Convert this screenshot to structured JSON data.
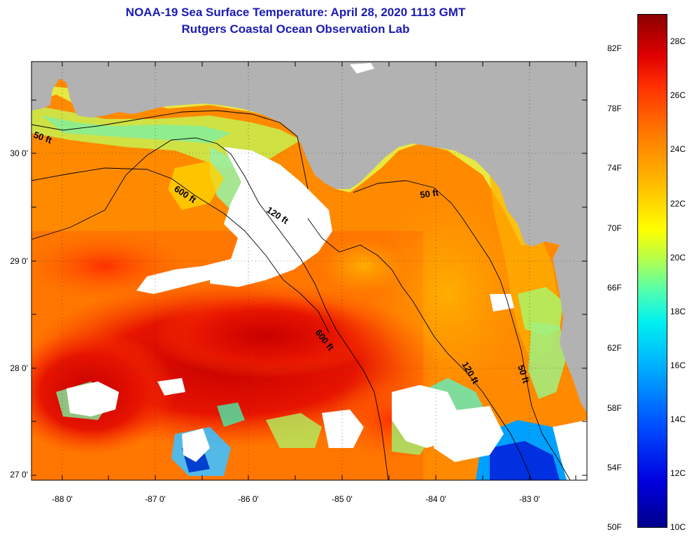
{
  "title_line1": "NOAA-19 Sea Surface Temperature:  April 28, 2020 1113 GMT",
  "title_line2": "Rutgers Coastal Ocean Observation Lab",
  "lat_labels": [
    "30 0'",
    "29 0'",
    "28 0'",
    "27 0'"
  ],
  "lon_labels": [
    "-88 0'",
    "-87 0'",
    "-86 0'",
    "-85 0'",
    "-84 0'",
    "-83 0'"
  ],
  "contour_labels": {
    "a": "50 ft",
    "b": "600 ft",
    "c": "120 ft",
    "d": "50 ft",
    "e": "600 ft",
    "f": "120 ft",
    "g": "50 ft"
  },
  "colorbar": {
    "fahrenheit": [
      "82F",
      "78F",
      "74F",
      "70F",
      "66F",
      "62F",
      "58F",
      "54F",
      "50F"
    ],
    "celsius": [
      "28C",
      "26C",
      "24C",
      "22C",
      "20C",
      "18C",
      "16C",
      "14C",
      "12C",
      "10C"
    ],
    "range_celsius": [
      10,
      29.5
    ],
    "colors": [
      "#00008c",
      "#0000e0",
      "#0050ff",
      "#00b4ff",
      "#00f0f0",
      "#50ffb0",
      "#b0ff50",
      "#ffff00",
      "#ffb400",
      "#ff7800",
      "#ff3000",
      "#e00000",
      "#8c0000"
    ]
  },
  "colors": {
    "land": "#b2b2b2",
    "cloud": "#ffffff",
    "title": "#1a1ab4"
  }
}
